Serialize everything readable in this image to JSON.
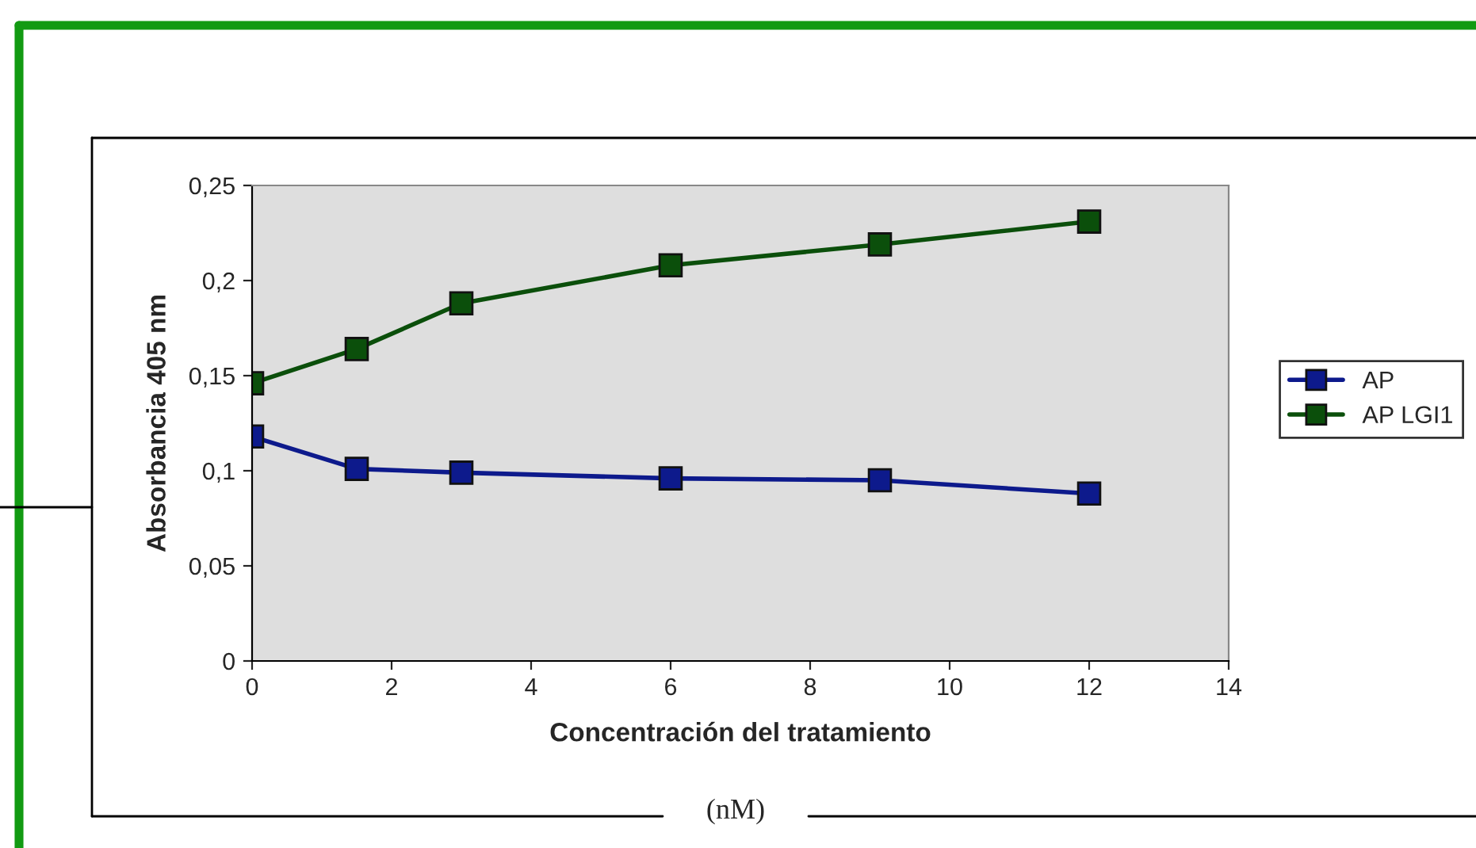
{
  "chart_data": {
    "type": "line",
    "xlabel": "Concentración del tratamiento",
    "ylabel": "Absorbancia 405 nm",
    "annotations": [
      "(nM)"
    ],
    "series": [
      {
        "name": "AP",
        "color": "#0d1a8c",
        "x": [
          0,
          1.5,
          3,
          6,
          9,
          12
        ],
        "values": [
          0.118,
          0.101,
          0.099,
          0.096,
          0.095,
          0.088
        ]
      },
      {
        "name": "AP LGI1",
        "color": "#0b4f0b",
        "x": [
          0,
          1.5,
          3,
          6,
          9,
          12
        ],
        "values": [
          0.146,
          0.164,
          0.188,
          0.208,
          0.219,
          0.231
        ]
      }
    ],
    "xlim": [
      0,
      14
    ],
    "xticks": [
      0,
      2,
      4,
      6,
      8,
      10,
      12,
      14
    ],
    "ylim": [
      0,
      0.25
    ],
    "yticks": [
      0,
      {
        "value": 0.05,
        "label": "0,05"
      },
      {
        "value": 0.1,
        "label": "0,1"
      },
      {
        "value": 0.15,
        "label": "0,15"
      },
      {
        "value": 0.2,
        "label": "0,2"
      },
      {
        "value": 0.25,
        "label": "0,25"
      }
    ],
    "grid": false,
    "legend": "right",
    "marker": "square",
    "line_style": "solid"
  }
}
